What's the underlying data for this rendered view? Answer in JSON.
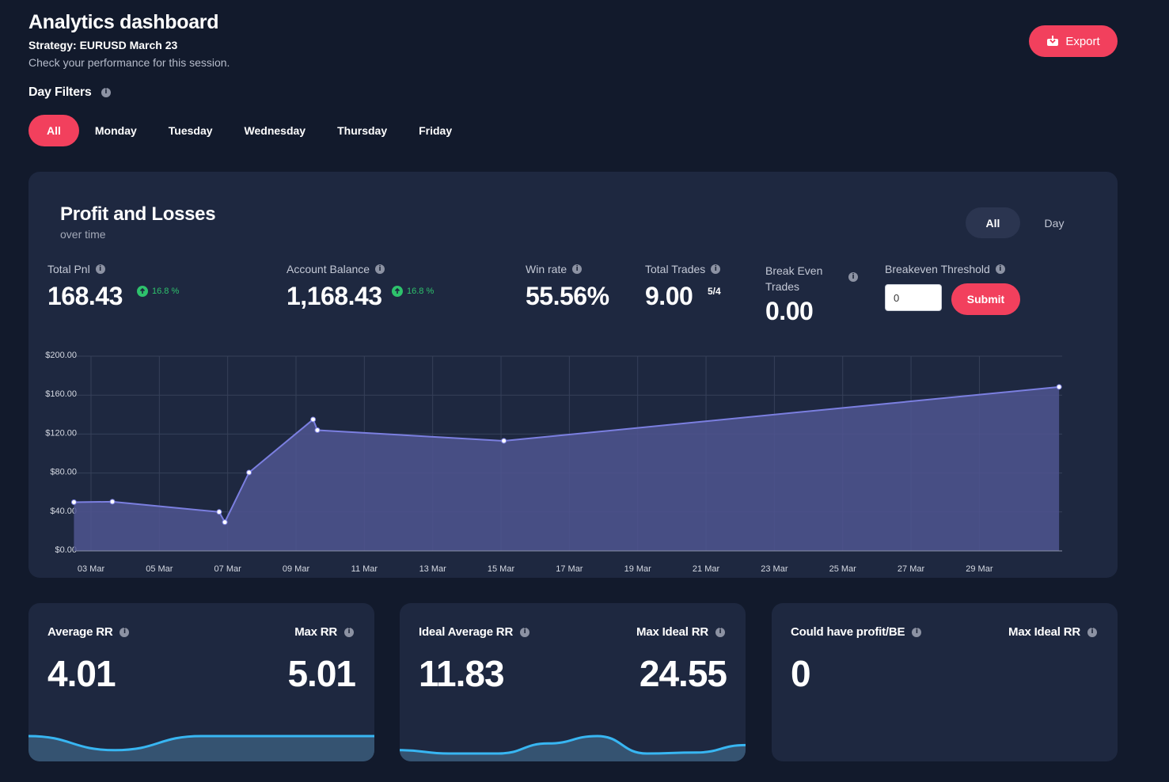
{
  "header": {
    "title": "Analytics dashboard",
    "strategy": "Strategy: EURUSD March 23",
    "subtitle": "Check your performance for this session.",
    "export_label": "Export"
  },
  "day_filters": {
    "label": "Day Filters",
    "tabs": [
      "All",
      "Monday",
      "Tuesday",
      "Wednesday",
      "Thursday",
      "Friday"
    ],
    "active": "All"
  },
  "pnl": {
    "title": "Profit and Losses",
    "subtitle": "over time",
    "segments": [
      "All",
      "Day"
    ],
    "active_segment": "All",
    "stats": {
      "total_pnl": {
        "label": "Total Pnl",
        "value": "168.43",
        "change": "16.8 %"
      },
      "account_balance": {
        "label": "Account Balance",
        "value": "1,168.43",
        "change": "16.8 %"
      },
      "win_rate": {
        "label": "Win rate",
        "value": "55.56%"
      },
      "total_trades": {
        "label": "Total Trades",
        "value": "9.00",
        "ratio": "5/4"
      },
      "break_even": {
        "label_line1": "Break Even",
        "label_line2": "Trades",
        "value": "0.00"
      },
      "threshold": {
        "label": "Breakeven Threshold",
        "input_value": "0",
        "submit_label": "Submit"
      }
    }
  },
  "chart_data": {
    "type": "area",
    "y_ticks": [
      "$200.00",
      "$160.00",
      "$120.00",
      "$80.00",
      "$40.00",
      "$0.00"
    ],
    "ylim": [
      0,
      200
    ],
    "x_ticks": [
      "03 Mar",
      "05 Mar",
      "07 Mar",
      "09 Mar",
      "11 Mar",
      "13 Mar",
      "15 Mar",
      "17 Mar",
      "19 Mar",
      "21 Mar",
      "23 Mar",
      "25 Mar",
      "27 Mar",
      "29 Mar"
    ],
    "xlim": [
      "2023-03-03",
      "2023-03-31"
    ],
    "series": [
      {
        "x": [
          "2023-03-02T12:00",
          "2023-03-03T15:00",
          "2023-03-06T18:00",
          "2023-03-06T22:00",
          "2023-03-07T15:00",
          "2023-03-09T12:00",
          "2023-03-09T15:00",
          "2023-03-15T02:00",
          "2023-03-31T08:00"
        ],
        "values": [
          50,
          50.5,
          40,
          29.5,
          80.5,
          135,
          124,
          113,
          168.43
        ]
      }
    ],
    "grid": true,
    "line_color": "#7b7fe0",
    "fill_color": "#4f5590"
  },
  "metrics": [
    {
      "left_label": "Average RR",
      "left_value": "4.01",
      "right_label": "Max RR",
      "right_value": "5.01",
      "spark": [
        0.52,
        0.1,
        0.52,
        0.52,
        0.52
      ],
      "spark_color": "#38b6f2"
    },
    {
      "left_label": "Ideal Average RR",
      "left_value": "11.83",
      "right_label": "Max Ideal RR",
      "right_value": "24.55",
      "spark": [
        0.1,
        0.0,
        0.0,
        0.3,
        0.52,
        0.0,
        0.03,
        0.25
      ],
      "spark_color": "#38b6f2"
    },
    {
      "left_label": "Could have profit/BE",
      "left_value": "0",
      "right_label": "Max Ideal RR",
      "right_value": ""
    }
  ]
}
